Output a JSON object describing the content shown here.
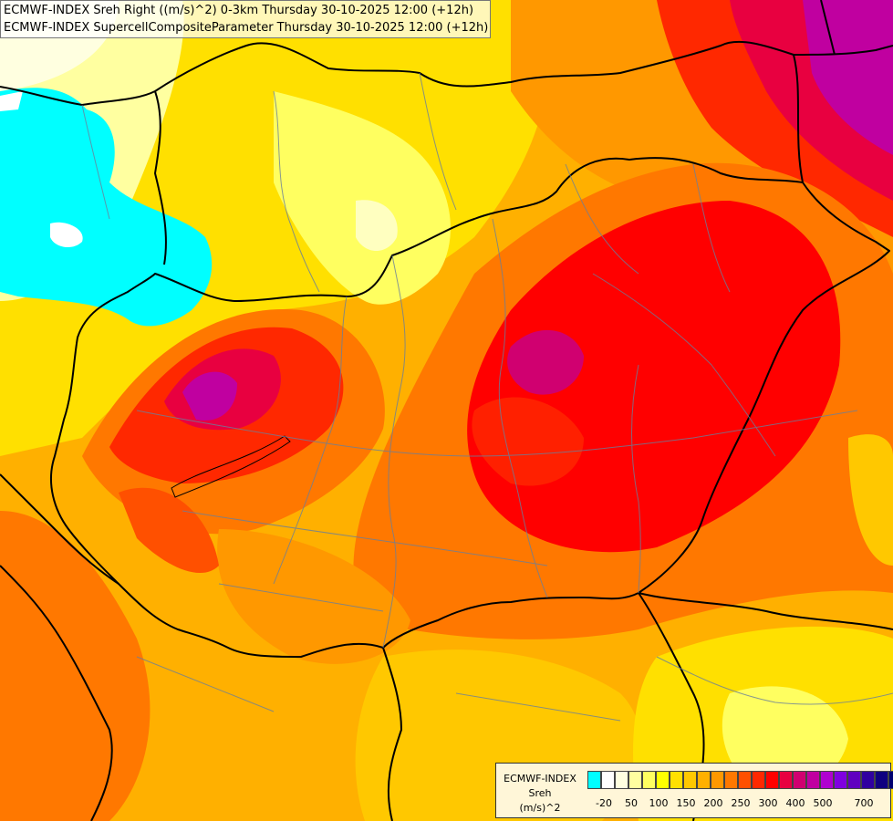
{
  "title": {
    "line1": "ECMWF-INDEX Sreh Right ((m/s)^2) 0-3km Thursday 30-10-2025 12:00 (+12h)",
    "line2": "ECMWF-INDEX SupercellCompositeParameter Thursday 30-10-2025 12:00 (+12h)"
  },
  "legend": {
    "label_model": "ECMWF-INDEX",
    "label_param": "Sreh",
    "label_unit": "(m/s)^2",
    "ticks": [
      "-20",
      "50",
      "100",
      "150",
      "200",
      "250",
      "300",
      "400",
      "500",
      "700"
    ],
    "colors": [
      "#00ffff",
      "#ffffff",
      "#ffffe0",
      "#ffffa0",
      "#ffff60",
      "#ffff00",
      "#ffe000",
      "#ffc800",
      "#ffb000",
      "#ff9800",
      "#ff7800",
      "#ff5000",
      "#ff2800",
      "#ff0000",
      "#e80040",
      "#d00070",
      "#c000a0",
      "#b000d0",
      "#8000e0",
      "#6000c0",
      "#3000a0",
      "#100080",
      "#000070"
    ]
  }
}
